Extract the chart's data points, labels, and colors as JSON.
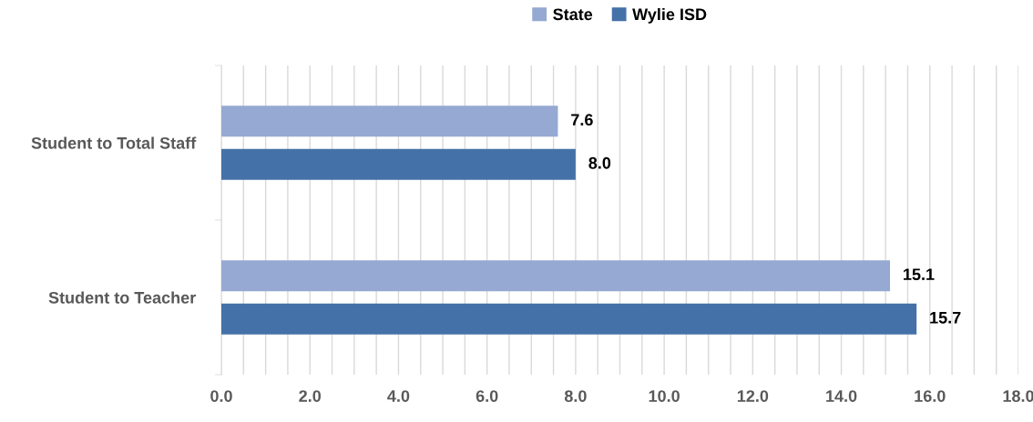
{
  "chart_data": {
    "type": "bar",
    "orientation": "horizontal",
    "categories": [
      "Student to Total Staff",
      "Student to Teacher"
    ],
    "series": [
      {
        "name": "State",
        "color": "#95a9d2",
        "values": [
          7.6,
          15.1
        ],
        "value_labels": [
          "7.6",
          "15.1"
        ]
      },
      {
        "name": "Wylie ISD",
        "color": "#4472a8",
        "values": [
          8.0,
          15.7
        ],
        "value_labels": [
          "8.0",
          "15.7"
        ]
      }
    ],
    "xlim": [
      0,
      18
    ],
    "xticks": [
      {
        "value": 0,
        "label": "0.0"
      },
      {
        "value": 0.5,
        "label": null
      },
      {
        "value": 1,
        "label": null
      },
      {
        "value": 1.5,
        "label": null
      },
      {
        "value": 2,
        "label": "2.0"
      },
      {
        "value": 2.5,
        "label": null
      },
      {
        "value": 3,
        "label": null
      },
      {
        "value": 3.5,
        "label": null
      },
      {
        "value": 4,
        "label": "4.0"
      },
      {
        "value": 4.5,
        "label": null
      },
      {
        "value": 5,
        "label": null
      },
      {
        "value": 5.5,
        "label": null
      },
      {
        "value": 6,
        "label": "6.0"
      },
      {
        "value": 6.5,
        "label": null
      },
      {
        "value": 7,
        "label": null
      },
      {
        "value": 7.5,
        "label": null
      },
      {
        "value": 8,
        "label": "8.0"
      },
      {
        "value": 8.5,
        "label": null
      },
      {
        "value": 9,
        "label": null
      },
      {
        "value": 9.5,
        "label": null
      },
      {
        "value": 10,
        "label": "10.0"
      },
      {
        "value": 10.5,
        "label": null
      },
      {
        "value": 11,
        "label": null
      },
      {
        "value": 11.5,
        "label": null
      },
      {
        "value": 12,
        "label": "12.0"
      },
      {
        "value": 12.5,
        "label": null
      },
      {
        "value": 13,
        "label": null
      },
      {
        "value": 13.5,
        "label": null
      },
      {
        "value": 14,
        "label": "14.0"
      },
      {
        "value": 14.5,
        "label": null
      },
      {
        "value": 15,
        "label": null
      },
      {
        "value": 15.5,
        "label": null
      },
      {
        "value": 16,
        "label": "16.0"
      },
      {
        "value": 16.5,
        "label": null
      },
      {
        "value": 17,
        "label": null
      },
      {
        "value": 17.5,
        "label": null
      },
      {
        "value": 18,
        "label": "18.0"
      }
    ],
    "grid": "x",
    "legend": "top"
  }
}
